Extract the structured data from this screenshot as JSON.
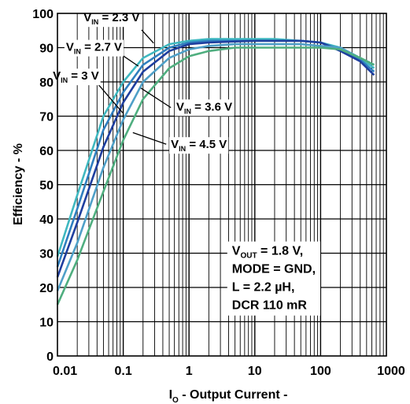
{
  "chart_data": {
    "type": "line",
    "title": "",
    "xlabel": "I",
    "xlabel_sub": "O",
    "xlabel_rest": " - Output Current -",
    "ylabel": "Efficiency - %",
    "x_scale": "log",
    "xlim": [
      0.01,
      1000
    ],
    "ylim": [
      0,
      100
    ],
    "grid": true,
    "x_ticks": [
      {
        "value": 0.01,
        "label": "0.01"
      },
      {
        "value": 0.1,
        "label": "0.1"
      },
      {
        "value": 1,
        "label": "1"
      },
      {
        "value": 10,
        "label": "10"
      },
      {
        "value": 100,
        "label": "100"
      },
      {
        "value": 1000,
        "label": "1000"
      }
    ],
    "y_ticks": [
      0,
      10,
      20,
      30,
      40,
      50,
      60,
      70,
      80,
      90,
      100
    ],
    "series": [
      {
        "color": "#3fb8c0",
        "label": "2.3 V",
        "points": [
          [
            0.01,
            29
          ],
          [
            0.02,
            47
          ],
          [
            0.05,
            70
          ],
          [
            0.1,
            80
          ],
          [
            0.2,
            87
          ],
          [
            0.5,
            91
          ],
          [
            1,
            92
          ],
          [
            2,
            92.5
          ],
          [
            5,
            92.5
          ],
          [
            10,
            92.5
          ],
          [
            20,
            92.5
          ],
          [
            50,
            92
          ],
          [
            100,
            91.5
          ],
          [
            200,
            90
          ],
          [
            400,
            87
          ],
          [
            650,
            84
          ]
        ]
      },
      {
        "color": "#2f7fbf",
        "label": "2.7 V",
        "points": [
          [
            0.01,
            26
          ],
          [
            0.02,
            43
          ],
          [
            0.05,
            66
          ],
          [
            0.1,
            77
          ],
          [
            0.2,
            85
          ],
          [
            0.5,
            90
          ],
          [
            1,
            91.5
          ],
          [
            2,
            92
          ],
          [
            5,
            92
          ],
          [
            10,
            92
          ],
          [
            20,
            92
          ],
          [
            50,
            92
          ],
          [
            100,
            91.5
          ],
          [
            200,
            89.5
          ],
          [
            400,
            86.5
          ],
          [
            650,
            83
          ]
        ]
      },
      {
        "color": "#1f3f9f",
        "label": "3 V",
        "points": [
          [
            0.01,
            23
          ],
          [
            0.02,
            39
          ],
          [
            0.05,
            61
          ],
          [
            0.1,
            74
          ],
          [
            0.2,
            83
          ],
          [
            0.5,
            89
          ],
          [
            1,
            91
          ],
          [
            2,
            91.5
          ],
          [
            5,
            91.8
          ],
          [
            10,
            92
          ],
          [
            20,
            92
          ],
          [
            50,
            92
          ],
          [
            100,
            91.5
          ],
          [
            200,
            89
          ],
          [
            400,
            86
          ],
          [
            650,
            82
          ]
        ]
      },
      {
        "color": "#4fa0c8",
        "label": "3.6 V",
        "points": [
          [
            0.01,
            19
          ],
          [
            0.02,
            33
          ],
          [
            0.05,
            55
          ],
          [
            0.1,
            69
          ],
          [
            0.2,
            80
          ],
          [
            0.5,
            87
          ],
          [
            1,
            89.5
          ],
          [
            2,
            90.5
          ],
          [
            5,
            91
          ],
          [
            10,
            91
          ],
          [
            20,
            91
          ],
          [
            50,
            91
          ],
          [
            100,
            90.5
          ],
          [
            200,
            90
          ],
          [
            400,
            87
          ],
          [
            650,
            85
          ]
        ]
      },
      {
        "color": "#4fae7f",
        "label": "4.5 V",
        "points": [
          [
            0.01,
            15
          ],
          [
            0.02,
            28
          ],
          [
            0.05,
            48
          ],
          [
            0.1,
            63
          ],
          [
            0.2,
            75
          ],
          [
            0.5,
            84
          ],
          [
            1,
            87.5
          ],
          [
            2,
            89
          ],
          [
            5,
            90
          ],
          [
            10,
            90
          ],
          [
            20,
            90
          ],
          [
            50,
            90
          ],
          [
            100,
            90
          ],
          [
            200,
            89.5
          ],
          [
            400,
            87
          ],
          [
            650,
            85
          ]
        ]
      }
    ],
    "annotations": [
      {
        "name": "vin-2-3",
        "prefix": "V",
        "sub": "IN",
        "rest": " = 2.3 V",
        "tx": 0.025,
        "ty": 98.8,
        "ax": [
          0.19,
          95.2
        ],
        "ay": [
          0.29,
          91.3
        ]
      },
      {
        "name": "vin-2-7",
        "prefix": "V",
        "sub": "IN",
        "rest": " = 2.7 V",
        "tx": 0.0135,
        "ty": 90.2,
        "ax": [
          0.1,
          87.6
        ],
        "ay": [
          0.17,
          84.6
        ]
      },
      {
        "name": "vin-3",
        "prefix": "V",
        "sub": "IN",
        "rest": " = 3 V",
        "tx": 0.0085,
        "ty": 81.8,
        "ax": [
          0.042,
          79.2
        ],
        "ay": [
          0.098,
          71
        ]
      },
      {
        "name": "vin-3-6",
        "prefix": "V",
        "sub": "IN",
        "rest": " = 3.6 V",
        "tx": 0.64,
        "ty": 72.8,
        "ax": [
          0.53,
          72.5
        ],
        "ay": [
          0.185,
          78.2
        ]
      },
      {
        "name": "vin-4-5",
        "prefix": "V",
        "sub": "IN",
        "rest": " = 4.5 V",
        "tx": 0.53,
        "ty": 61.8,
        "ax": [
          0.45,
          61.8
        ],
        "ay": [
          0.14,
          65.2
        ]
      }
    ],
    "conditions": [
      {
        "prefix": "V",
        "sub": "OUT",
        "rest": " = 1.8 V,"
      },
      {
        "prefix": "",
        "sub": "",
        "rest": "MODE = GND,"
      },
      {
        "prefix": "",
        "sub": "",
        "rest": "L = 2.2 µH,"
      },
      {
        "prefix": "",
        "sub": "",
        "rest": "DCR 110 mR"
      }
    ]
  }
}
